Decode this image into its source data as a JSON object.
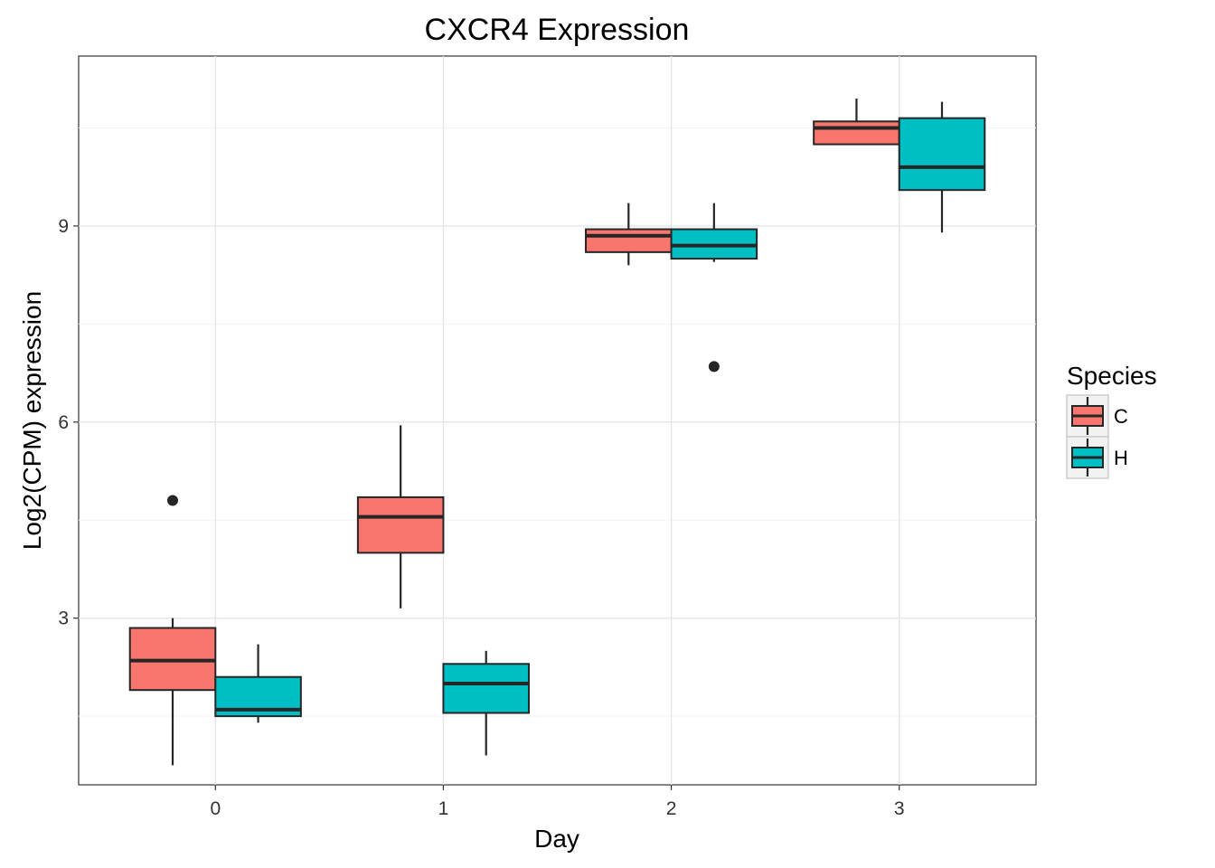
{
  "chart_data": {
    "type": "boxplot",
    "title": "CXCR4 Expression",
    "xlabel": "Day",
    "ylabel": "Log2(CPM) expression",
    "categories": [
      "0",
      "1",
      "2",
      "3"
    ],
    "ylim": [
      0.45,
      11.6
    ],
    "yticks": [
      3,
      6,
      9
    ],
    "grid": true,
    "legend": {
      "title": "Species",
      "position": "right"
    },
    "series": [
      {
        "name": "C",
        "color": "#F8766D",
        "boxes": [
          {
            "category": "0",
            "whisker_low": 0.75,
            "q1": 1.9,
            "median": 2.35,
            "q3": 2.85,
            "whisker_high": 3.0,
            "outliers": [
              4.8
            ]
          },
          {
            "category": "1",
            "whisker_low": 3.15,
            "q1": 4.0,
            "median": 4.55,
            "q3": 4.85,
            "whisker_high": 5.95,
            "outliers": []
          },
          {
            "category": "2",
            "whisker_low": 8.4,
            "q1": 8.6,
            "median": 8.85,
            "q3": 8.95,
            "whisker_high": 9.35,
            "outliers": []
          },
          {
            "category": "3",
            "whisker_low": 10.25,
            "q1": 10.25,
            "median": 10.5,
            "q3": 10.6,
            "whisker_high": 10.95,
            "outliers": []
          }
        ]
      },
      {
        "name": "H",
        "color": "#00BFC4",
        "boxes": [
          {
            "category": "0",
            "whisker_low": 1.4,
            "q1": 1.5,
            "median": 1.6,
            "q3": 2.1,
            "whisker_high": 2.6,
            "outliers": []
          },
          {
            "category": "1",
            "whisker_low": 0.9,
            "q1": 1.55,
            "median": 2.0,
            "q3": 2.3,
            "whisker_high": 2.5,
            "outliers": []
          },
          {
            "category": "2",
            "whisker_low": 8.45,
            "q1": 8.5,
            "median": 8.7,
            "q3": 8.95,
            "whisker_high": 9.35,
            "outliers": [
              6.85
            ]
          },
          {
            "category": "3",
            "whisker_low": 8.9,
            "q1": 9.55,
            "median": 9.9,
            "q3": 10.65,
            "whisker_high": 10.9,
            "outliers": []
          }
        ]
      }
    ]
  }
}
